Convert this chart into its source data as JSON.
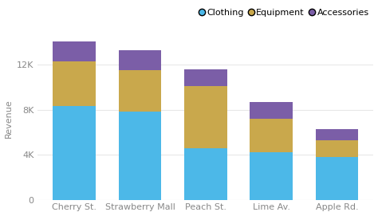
{
  "categories": [
    "Cherry St.",
    "Strawberry Mall",
    "Peach St.",
    "Lime Av.",
    "Apple Rd."
  ],
  "clothing": [
    8300,
    7800,
    4600,
    4200,
    3800
  ],
  "equipment": [
    4000,
    3700,
    5500,
    3000,
    1500
  ],
  "accessories": [
    1800,
    1800,
    1500,
    1500,
    1000
  ],
  "colors": {
    "clothing": "#4cb8e8",
    "equipment": "#c9a84c",
    "accessories": "#7b5ea7"
  },
  "ylabel": "Revenue",
  "ylim": [
    0,
    14500
  ],
  "yticks": [
    0,
    4000,
    8000,
    12000
  ],
  "ytick_labels": [
    "0",
    "4K",
    "8K",
    "12K"
  ],
  "legend_labels": [
    "Clothing",
    "Equipment",
    "Accessories"
  ],
  "legend_colors": [
    "#4cb8e8",
    "#c9a84c",
    "#7b5ea7"
  ],
  "background_color": "#ffffff",
  "bar_width": 0.65
}
